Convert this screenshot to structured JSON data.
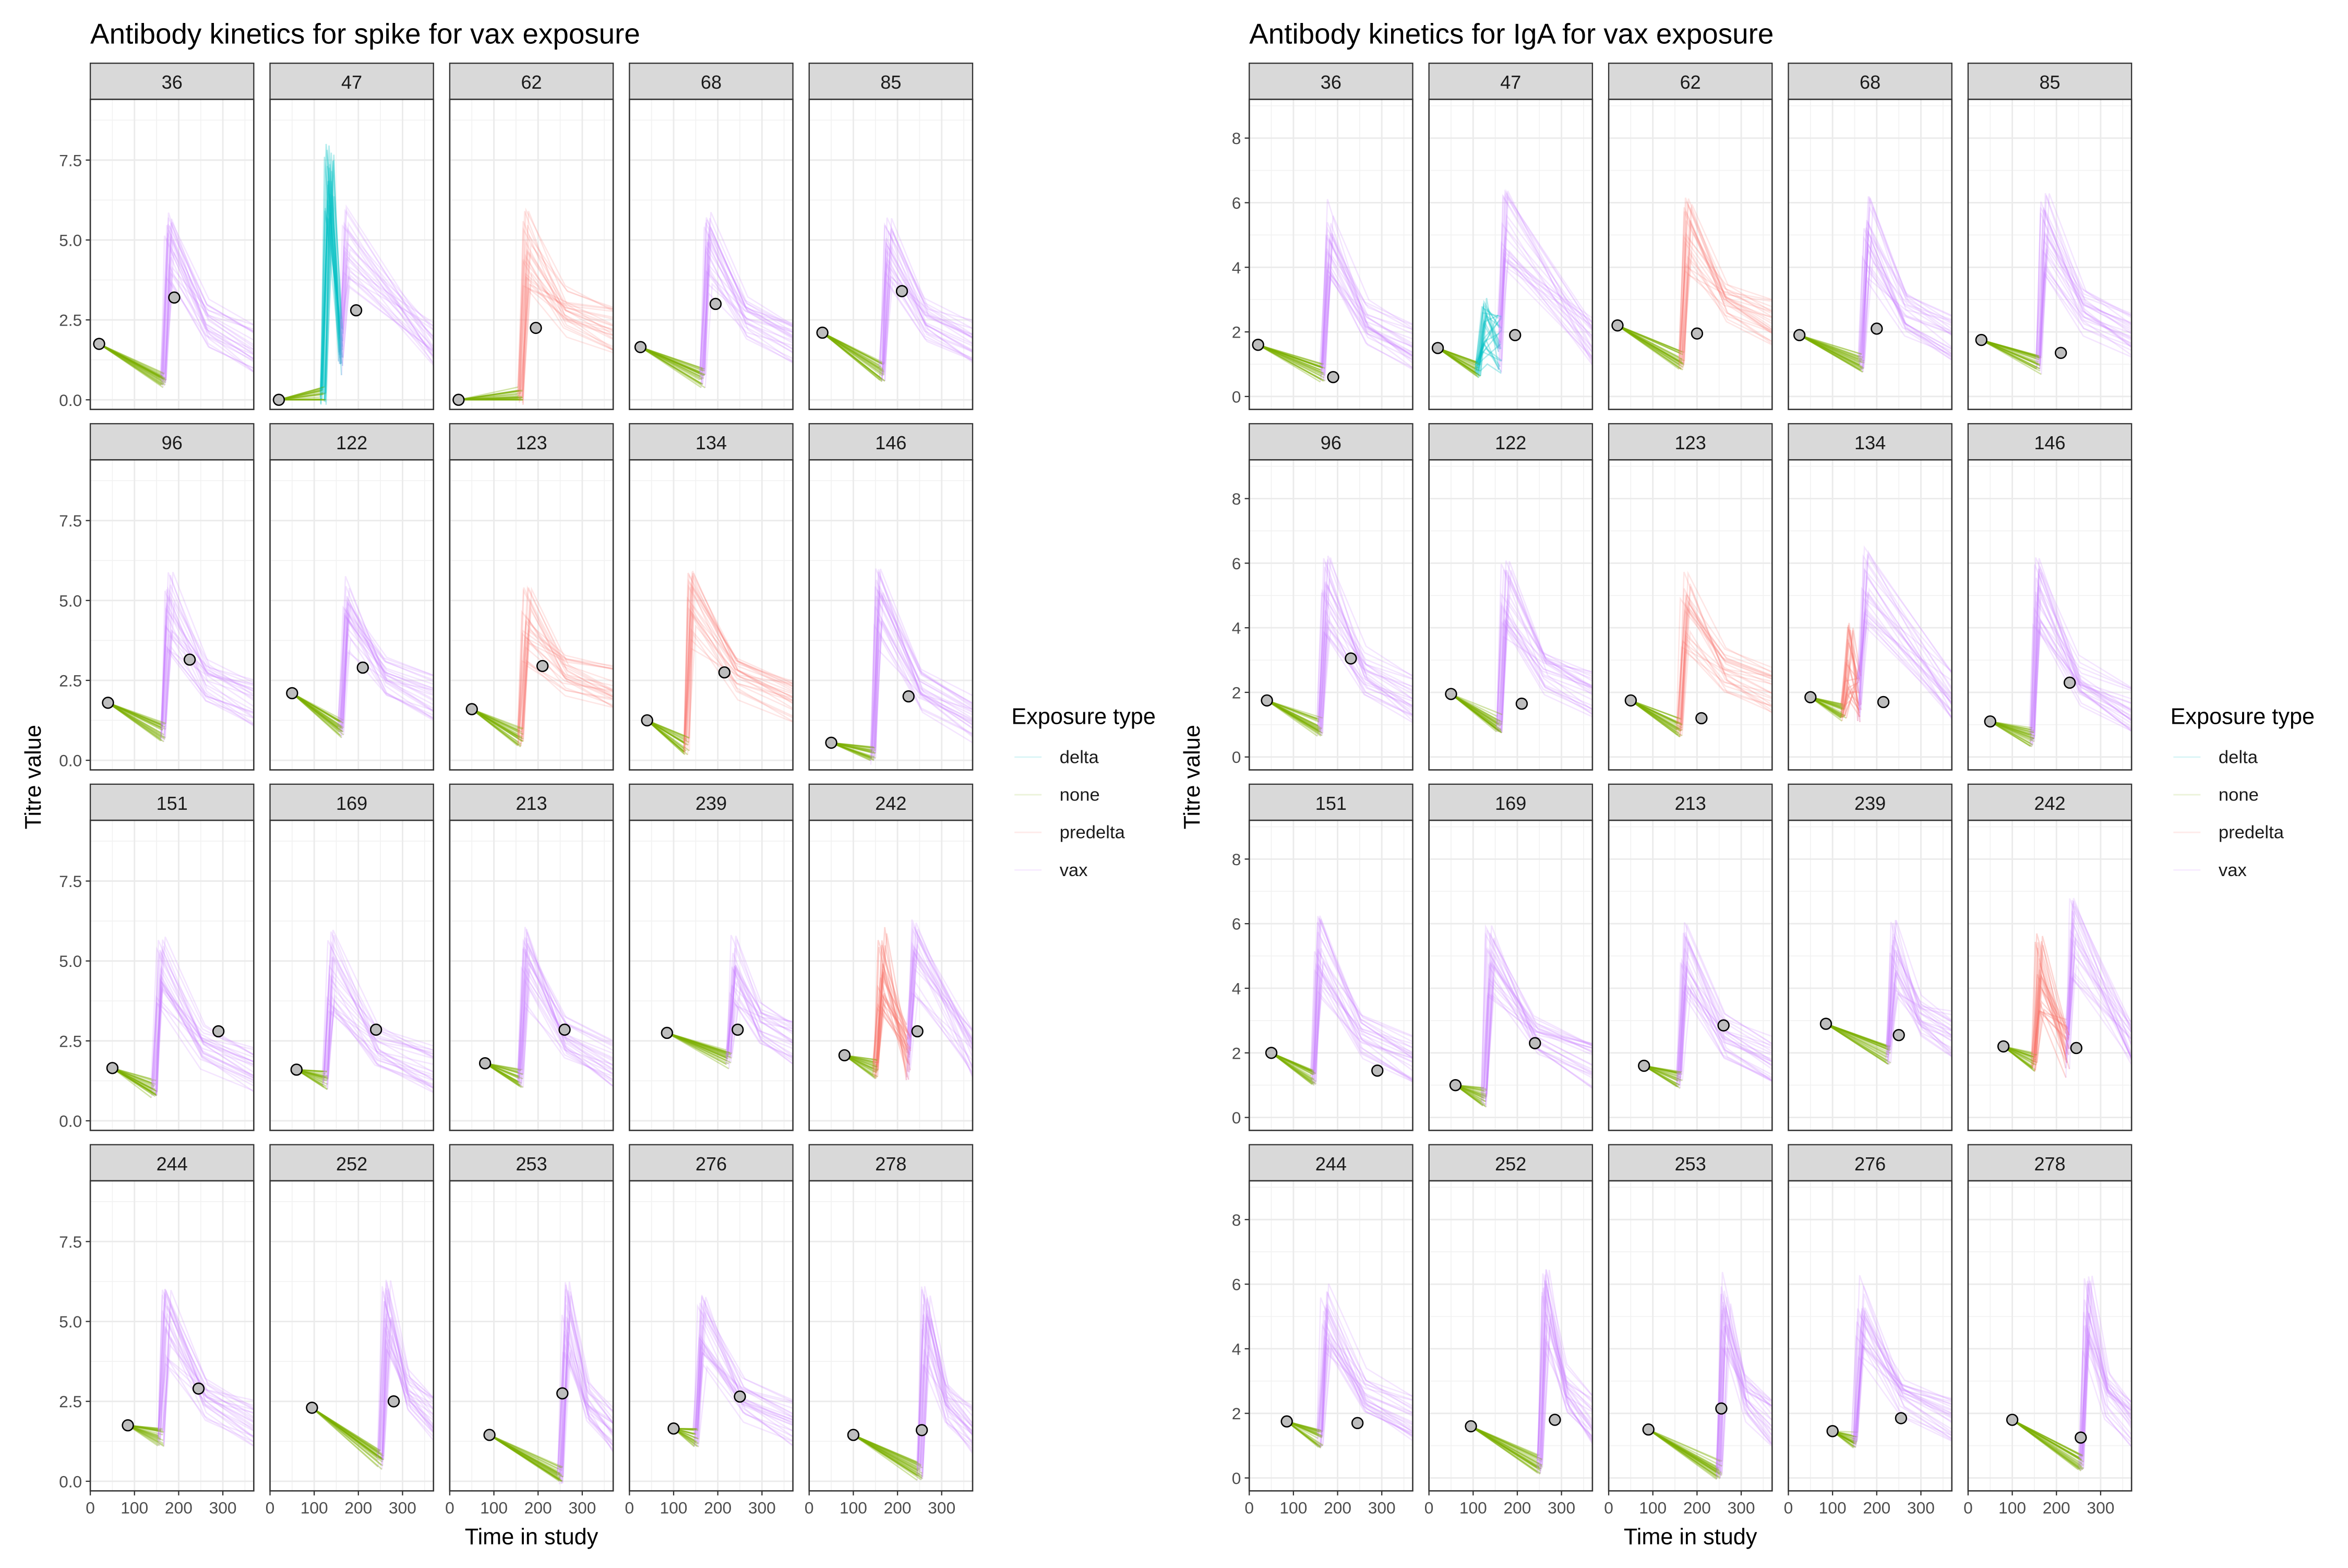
{
  "colors": {
    "vax": "#C77CFF",
    "none": "#7CAE00",
    "delta": "#00BFC4",
    "predelta": "#F8766D",
    "strip_fill": "#D9D9D9",
    "point_fill": "#BEBEBE"
  },
  "chart_data": [
    {
      "type": "line",
      "title": "Antibody kinetics for spike for vax exposure",
      "xlabel": "Time in study",
      "ylabel": "Titre value",
      "xlim": [
        0,
        370
      ],
      "ylim": [
        -0.3,
        9.4
      ],
      "x_ticks": [
        0,
        100,
        200,
        300
      ],
      "y_ticks": [
        0,
        2.5,
        5,
        7.5
      ],
      "y_tick_labels": [
        "0.0",
        "2.5",
        "5.0",
        "7.5"
      ],
      "legend": {
        "title": "Exposure type",
        "entries": [
          "delta",
          "none",
          "predelta",
          "vax"
        ],
        "position": "right"
      },
      "grid": true,
      "panels": [
        {
          "id": "36",
          "start_x": 20,
          "start_y": 1.75,
          "event_x": 165,
          "trough_y": 0.5,
          "event_type": "vax",
          "peak_y": 4.7,
          "decay_y": 1.3,
          "obs_x": 190,
          "obs_y": 3.2
        },
        {
          "id": "47",
          "start_x": 20,
          "start_y": 0.0,
          "event_x": 120,
          "trough_y": 0.0,
          "event_type": "delta",
          "peak_y": 6.9,
          "decay_y": 1.4,
          "second_event_x": 160,
          "second_peak_y": 4.8,
          "obs_x": 195,
          "obs_y": 2.8
        },
        {
          "id": "62",
          "start_x": 20,
          "start_y": 0.0,
          "event_x": 160,
          "trough_y": 0.0,
          "event_type": "predelta",
          "peak_y": 4.7,
          "decay_y": 1.9,
          "obs_x": 195,
          "obs_y": 2.25
        },
        {
          "id": "68",
          "start_x": 25,
          "start_y": 1.65,
          "event_x": 165,
          "trough_y": 0.55,
          "event_type": "vax",
          "peak_y": 4.6,
          "decay_y": 1.4,
          "obs_x": 195,
          "obs_y": 3.0
        },
        {
          "id": "85",
          "start_x": 30,
          "start_y": 2.1,
          "event_x": 165,
          "trough_y": 0.75,
          "event_type": "vax",
          "peak_y": 4.7,
          "decay_y": 1.6,
          "obs_x": 210,
          "obs_y": 3.4
        },
        {
          "id": "96",
          "start_x": 40,
          "start_y": 1.8,
          "event_x": 165,
          "trough_y": 0.75,
          "event_type": "vax",
          "peak_y": 4.7,
          "decay_y": 1.5,
          "obs_x": 225,
          "obs_y": 3.15
        },
        {
          "id": "122",
          "start_x": 50,
          "start_y": 2.1,
          "event_x": 160,
          "trough_y": 0.85,
          "event_type": "vax",
          "peak_y": 4.6,
          "decay_y": 1.7,
          "obs_x": 210,
          "obs_y": 2.9
        },
        {
          "id": "123",
          "start_x": 50,
          "start_y": 1.6,
          "event_x": 160,
          "trough_y": 0.6,
          "event_type": "predelta",
          "peak_y": 4.2,
          "decay_y": 2.0,
          "obs_x": 210,
          "obs_y": 2.95
        },
        {
          "id": "134",
          "start_x": 40,
          "start_y": 1.25,
          "event_x": 130,
          "trough_y": 0.35,
          "event_type": "predelta",
          "peak_y": 4.7,
          "decay_y": 1.6,
          "obs_x": 215,
          "obs_y": 2.75
        },
        {
          "id": "146",
          "start_x": 50,
          "start_y": 0.55,
          "event_x": 145,
          "trough_y": 0.0,
          "event_type": "vax",
          "peak_y": 4.7,
          "decay_y": 1.0,
          "obs_x": 225,
          "obs_y": 2.0
        },
        {
          "id": "151",
          "start_x": 50,
          "start_y": 1.65,
          "event_x": 145,
          "trough_y": 0.9,
          "event_type": "vax",
          "peak_y": 4.7,
          "decay_y": 1.3,
          "obs_x": 290,
          "obs_y": 2.8
        },
        {
          "id": "169",
          "start_x": 60,
          "start_y": 1.6,
          "event_x": 125,
          "trough_y": 1.15,
          "event_type": "vax",
          "peak_y": 4.7,
          "decay_y": 1.3,
          "obs_x": 240,
          "obs_y": 2.85
        },
        {
          "id": "213",
          "start_x": 80,
          "start_y": 1.8,
          "event_x": 160,
          "trough_y": 1.2,
          "event_type": "vax",
          "peak_y": 4.8,
          "decay_y": 1.5,
          "obs_x": 260,
          "obs_y": 2.85
        },
        {
          "id": "239",
          "start_x": 85,
          "start_y": 2.75,
          "event_x": 225,
          "trough_y": 1.8,
          "event_type": "vax",
          "peak_y": 4.8,
          "decay_y": 2.2,
          "obs_x": 245,
          "obs_y": 2.85
        },
        {
          "id": "242",
          "start_x": 80,
          "start_y": 2.05,
          "event_x": 150,
          "trough_y": 1.5,
          "event_type": "predelta",
          "peak_y": 4.8,
          "decay_y": 1.8,
          "second_event_x": 225,
          "second_peak_y": 5.0,
          "obs_x": 245,
          "obs_y": 2.8
        },
        {
          "id": "244",
          "start_x": 85,
          "start_y": 1.75,
          "event_x": 160,
          "trough_y": 1.25,
          "event_type": "vax",
          "peak_y": 4.8,
          "decay_y": 1.5,
          "obs_x": 245,
          "obs_y": 2.9
        },
        {
          "id": "252",
          "start_x": 95,
          "start_y": 2.3,
          "event_x": 250,
          "trough_y": 0.55,
          "event_type": "vax",
          "peak_y": 5.1,
          "decay_y": 1.6,
          "obs_x": 280,
          "obs_y": 2.5
        },
        {
          "id": "253",
          "start_x": 90,
          "start_y": 1.45,
          "event_x": 250,
          "trough_y": 0.05,
          "event_type": "vax",
          "peak_y": 5.0,
          "decay_y": 1.3,
          "obs_x": 255,
          "obs_y": 2.75
        },
        {
          "id": "276",
          "start_x": 100,
          "start_y": 1.65,
          "event_x": 150,
          "trough_y": 1.25,
          "event_type": "vax",
          "peak_y": 4.6,
          "decay_y": 1.5,
          "obs_x": 250,
          "obs_y": 2.65
        },
        {
          "id": "278",
          "start_x": 100,
          "start_y": 1.45,
          "event_x": 250,
          "trough_y": 0.2,
          "event_type": "vax",
          "peak_y": 4.9,
          "decay_y": 1.3,
          "obs_x": 255,
          "obs_y": 1.6
        }
      ]
    },
    {
      "type": "line",
      "title": "Antibody kinetics for IgA for vax exposure",
      "xlabel": "Time in study",
      "ylabel": "Titre value",
      "xlim": [
        0,
        370
      ],
      "ylim": [
        -0.4,
        9.2
      ],
      "x_ticks": [
        0,
        100,
        200,
        300
      ],
      "y_ticks": [
        0,
        2,
        4,
        6,
        8
      ],
      "y_tick_labels": [
        "0",
        "2",
        "4",
        "6",
        "8"
      ],
      "legend": {
        "title": "Exposure type",
        "entries": [
          "delta",
          "none",
          "predelta",
          "vax"
        ],
        "position": "right"
      },
      "grid": true,
      "panels": [
        {
          "id": "36",
          "start_x": 20,
          "start_y": 1.6,
          "event_x": 165,
          "trough_y": 0.6,
          "event_type": "vax",
          "peak_y": 5.0,
          "decay_y": 1.2,
          "obs_x": 190,
          "obs_y": 0.6
        },
        {
          "id": "47",
          "start_x": 20,
          "start_y": 1.5,
          "event_x": 110,
          "trough_y": 0.7,
          "event_type": "delta",
          "peak_y": 2.3,
          "decay_y": 1.4,
          "second_event_x": 160,
          "second_peak_y": 5.2,
          "obs_x": 195,
          "obs_y": 1.9
        },
        {
          "id": "62",
          "start_x": 20,
          "start_y": 2.2,
          "event_x": 165,
          "trough_y": 1.0,
          "event_type": "predelta",
          "peak_y": 5.0,
          "decay_y": 2.0,
          "obs_x": 200,
          "obs_y": 1.95
        },
        {
          "id": "68",
          "start_x": 25,
          "start_y": 1.9,
          "event_x": 165,
          "trough_y": 0.9,
          "event_type": "vax",
          "peak_y": 4.9,
          "decay_y": 1.5,
          "obs_x": 200,
          "obs_y": 2.1
        },
        {
          "id": "85",
          "start_x": 30,
          "start_y": 1.75,
          "event_x": 160,
          "trough_y": 0.85,
          "event_type": "vax",
          "peak_y": 5.0,
          "decay_y": 1.6,
          "obs_x": 210,
          "obs_y": 1.35
        },
        {
          "id": "96",
          "start_x": 40,
          "start_y": 1.75,
          "event_x": 160,
          "trough_y": 0.8,
          "event_type": "vax",
          "peak_y": 5.0,
          "decay_y": 1.5,
          "obs_x": 230,
          "obs_y": 3.05
        },
        {
          "id": "122",
          "start_x": 50,
          "start_y": 1.95,
          "event_x": 160,
          "trough_y": 0.9,
          "event_type": "vax",
          "peak_y": 5.0,
          "decay_y": 1.6,
          "obs_x": 210,
          "obs_y": 1.65
        },
        {
          "id": "123",
          "start_x": 50,
          "start_y": 1.75,
          "event_x": 160,
          "trough_y": 0.8,
          "event_type": "predelta",
          "peak_y": 4.5,
          "decay_y": 1.8,
          "obs_x": 210,
          "obs_y": 1.2
        },
        {
          "id": "134",
          "start_x": 50,
          "start_y": 1.85,
          "event_x": 125,
          "trough_y": 1.25,
          "event_type": "predelta",
          "peak_y": 3.0,
          "decay_y": 1.6,
          "second_event_x": 160,
          "second_peak_y": 5.2,
          "obs_x": 215,
          "obs_y": 1.7
        },
        {
          "id": "146",
          "start_x": 50,
          "start_y": 1.1,
          "event_x": 145,
          "trough_y": 0.5,
          "event_type": "vax",
          "peak_y": 5.0,
          "decay_y": 1.2,
          "obs_x": 230,
          "obs_y": 2.3
        },
        {
          "id": "151",
          "start_x": 50,
          "start_y": 2.0,
          "event_x": 145,
          "trough_y": 1.1,
          "event_type": "vax",
          "peak_y": 5.0,
          "decay_y": 1.5,
          "obs_x": 290,
          "obs_y": 1.45
        },
        {
          "id": "169",
          "start_x": 60,
          "start_y": 1.0,
          "event_x": 125,
          "trough_y": 0.5,
          "event_type": "vax",
          "peak_y": 5.0,
          "decay_y": 1.3,
          "obs_x": 240,
          "obs_y": 2.3
        },
        {
          "id": "213",
          "start_x": 80,
          "start_y": 1.6,
          "event_x": 160,
          "trough_y": 1.0,
          "event_type": "vax",
          "peak_y": 5.0,
          "decay_y": 1.5,
          "obs_x": 260,
          "obs_y": 2.85
        },
        {
          "id": "239",
          "start_x": 85,
          "start_y": 2.9,
          "event_x": 225,
          "trough_y": 1.8,
          "event_type": "vax",
          "peak_y": 5.0,
          "decay_y": 2.3,
          "obs_x": 250,
          "obs_y": 2.55
        },
        {
          "id": "242",
          "start_x": 80,
          "start_y": 2.2,
          "event_x": 150,
          "trough_y": 1.6,
          "event_type": "predelta",
          "peak_y": 4.5,
          "decay_y": 1.9,
          "second_event_x": 225,
          "second_peak_y": 5.5,
          "obs_x": 245,
          "obs_y": 2.15
        },
        {
          "id": "244",
          "start_x": 85,
          "start_y": 1.75,
          "event_x": 160,
          "trough_y": 1.1,
          "event_type": "vax",
          "peak_y": 5.0,
          "decay_y": 1.5,
          "obs_x": 245,
          "obs_y": 1.7
        },
        {
          "id": "252",
          "start_x": 95,
          "start_y": 1.6,
          "event_x": 250,
          "trough_y": 0.3,
          "event_type": "vax",
          "peak_y": 5.2,
          "decay_y": 1.5,
          "obs_x": 285,
          "obs_y": 1.8
        },
        {
          "id": "253",
          "start_x": 90,
          "start_y": 1.5,
          "event_x": 250,
          "trough_y": 0.1,
          "event_type": "vax",
          "peak_y": 5.2,
          "decay_y": 1.4,
          "obs_x": 255,
          "obs_y": 2.15
        },
        {
          "id": "276",
          "start_x": 100,
          "start_y": 1.45,
          "event_x": 150,
          "trough_y": 1.1,
          "event_type": "vax",
          "peak_y": 5.0,
          "decay_y": 1.5,
          "obs_x": 255,
          "obs_y": 1.85
        },
        {
          "id": "278",
          "start_x": 100,
          "start_y": 1.8,
          "event_x": 255,
          "trough_y": 0.3,
          "event_type": "vax",
          "peak_y": 5.0,
          "decay_y": 1.4,
          "obs_x": 255,
          "obs_y": 1.25
        }
      ]
    }
  ]
}
